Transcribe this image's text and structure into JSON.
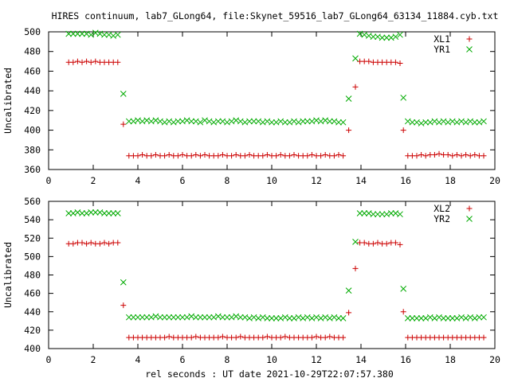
{
  "figure": {
    "title": "HIRES continuum, lab7_GLong64, file:Skynet_59516_lab7_GLong64_63134_11884.cyb.txt",
    "xlabel": "rel seconds : UT date 2021-10-29T22:07:57.380"
  },
  "chart_data": [
    {
      "type": "scatter",
      "ylabel": "Uncalibrated",
      "xlim": [
        0,
        20
      ],
      "ylim": [
        360,
        500
      ],
      "xticks": [
        0,
        2,
        4,
        6,
        8,
        10,
        12,
        14,
        16,
        18,
        20
      ],
      "yticks": [
        360,
        380,
        400,
        420,
        440,
        460,
        480,
        500
      ],
      "legend_position": "top-right",
      "grid": false,
      "series": [
        {
          "name": "XL1",
          "marker": "plus",
          "color": "#cc0000",
          "x": [
            0.9,
            1.1,
            1.3,
            1.5,
            1.7,
            1.9,
            2.1,
            2.3,
            2.5,
            2.7,
            2.9,
            3.1,
            3.35,
            3.6,
            3.8,
            4.0,
            4.2,
            4.4,
            4.6,
            4.8,
            5.0,
            5.2,
            5.4,
            5.6,
            5.8,
            6.0,
            6.2,
            6.4,
            6.6,
            6.8,
            7.0,
            7.2,
            7.4,
            7.6,
            7.8,
            8.0,
            8.2,
            8.4,
            8.6,
            8.8,
            9.0,
            9.2,
            9.4,
            9.6,
            9.8,
            10.0,
            10.2,
            10.4,
            10.6,
            10.8,
            11.0,
            11.2,
            11.4,
            11.6,
            11.8,
            12.0,
            12.2,
            12.4,
            12.6,
            12.8,
            13.0,
            13.2,
            13.45,
            13.75,
            13.95,
            14.15,
            14.35,
            14.55,
            14.75,
            14.95,
            15.15,
            15.35,
            15.55,
            15.75,
            15.9,
            16.1,
            16.3,
            16.5,
            16.7,
            16.9,
            17.1,
            17.3,
            17.5,
            17.7,
            17.9,
            18.1,
            18.3,
            18.5,
            18.7,
            18.9,
            19.1,
            19.3,
            19.5
          ],
          "y": [
            469,
            469,
            470,
            469,
            470,
            469,
            470,
            469,
            469,
            469,
            469,
            469,
            406,
            374,
            374,
            374,
            375,
            374,
            374,
            375,
            374,
            374,
            375,
            374,
            374,
            375,
            374,
            374,
            375,
            374,
            375,
            374,
            374,
            374,
            375,
            374,
            374,
            375,
            374,
            374,
            375,
            374,
            374,
            374,
            375,
            374,
            374,
            375,
            374,
            374,
            375,
            374,
            374,
            374,
            375,
            374,
            374,
            375,
            374,
            374,
            375,
            374,
            400,
            444,
            470,
            470,
            470,
            469,
            469,
            469,
            469,
            469,
            469,
            468,
            400,
            374,
            374,
            374,
            375,
            374,
            375,
            375,
            376,
            375,
            375,
            374,
            375,
            374,
            375,
            374,
            375,
            374,
            374
          ]
        },
        {
          "name": "YR1",
          "marker": "x",
          "color": "#00aa00",
          "x": [
            0.9,
            1.1,
            1.3,
            1.5,
            1.7,
            1.9,
            2.1,
            2.3,
            2.5,
            2.7,
            2.9,
            3.1,
            3.35,
            3.6,
            3.8,
            4.0,
            4.2,
            4.4,
            4.6,
            4.8,
            5.0,
            5.2,
            5.4,
            5.6,
            5.8,
            6.0,
            6.2,
            6.4,
            6.6,
            6.8,
            7.0,
            7.2,
            7.4,
            7.6,
            7.8,
            8.0,
            8.2,
            8.4,
            8.6,
            8.8,
            9.0,
            9.2,
            9.4,
            9.6,
            9.8,
            10.0,
            10.2,
            10.4,
            10.6,
            10.8,
            11.0,
            11.2,
            11.4,
            11.6,
            11.8,
            12.0,
            12.2,
            12.4,
            12.6,
            12.8,
            13.0,
            13.2,
            13.45,
            13.75,
            13.95,
            14.15,
            14.35,
            14.55,
            14.75,
            14.95,
            15.15,
            15.35,
            15.55,
            15.75,
            15.9,
            16.1,
            16.3,
            16.5,
            16.7,
            16.9,
            17.1,
            17.3,
            17.5,
            17.7,
            17.9,
            18.1,
            18.3,
            18.5,
            18.7,
            18.9,
            19.1,
            19.3,
            19.5
          ],
          "y": [
            498,
            498,
            498,
            498,
            498,
            497,
            499,
            498,
            497,
            497,
            496,
            497,
            437,
            409,
            409,
            410,
            409,
            410,
            409,
            410,
            409,
            408,
            409,
            408,
            409,
            409,
            410,
            409,
            409,
            408,
            410,
            409,
            408,
            409,
            409,
            408,
            409,
            410,
            409,
            408,
            409,
            409,
            409,
            408,
            409,
            408,
            408,
            409,
            408,
            408,
            409,
            408,
            409,
            409,
            409,
            410,
            409,
            410,
            409,
            409,
            408,
            408,
            432,
            473,
            498,
            497,
            496,
            495,
            495,
            494,
            494,
            494,
            495,
            497,
            433,
            409,
            408,
            408,
            407,
            408,
            408,
            409,
            408,
            409,
            408,
            409,
            408,
            409,
            408,
            409,
            408,
            408,
            409
          ]
        }
      ]
    },
    {
      "type": "scatter",
      "ylabel": "Uncalibrated",
      "xlim": [
        0,
        20
      ],
      "ylim": [
        400,
        560
      ],
      "xticks": [
        0,
        2,
        4,
        6,
        8,
        10,
        12,
        14,
        16,
        18,
        20
      ],
      "yticks": [
        400,
        420,
        440,
        460,
        480,
        500,
        520,
        540,
        560
      ],
      "legend_position": "top-right",
      "grid": false,
      "series": [
        {
          "name": "XL2",
          "marker": "plus",
          "color": "#cc0000",
          "x": [
            0.9,
            1.1,
            1.3,
            1.5,
            1.7,
            1.9,
            2.1,
            2.3,
            2.5,
            2.7,
            2.9,
            3.1,
            3.35,
            3.6,
            3.8,
            4.0,
            4.2,
            4.4,
            4.6,
            4.8,
            5.0,
            5.2,
            5.4,
            5.6,
            5.8,
            6.0,
            6.2,
            6.4,
            6.6,
            6.8,
            7.0,
            7.2,
            7.4,
            7.6,
            7.8,
            8.0,
            8.2,
            8.4,
            8.6,
            8.8,
            9.0,
            9.2,
            9.4,
            9.6,
            9.8,
            10.0,
            10.2,
            10.4,
            10.6,
            10.8,
            11.0,
            11.2,
            11.4,
            11.6,
            11.8,
            12.0,
            12.2,
            12.4,
            12.6,
            12.8,
            13.0,
            13.2,
            13.45,
            13.75,
            13.95,
            14.15,
            14.35,
            14.55,
            14.75,
            14.95,
            15.15,
            15.35,
            15.55,
            15.75,
            15.9,
            16.1,
            16.3,
            16.5,
            16.7,
            16.9,
            17.1,
            17.3,
            17.5,
            17.7,
            17.9,
            18.1,
            18.3,
            18.5,
            18.7,
            18.9,
            19.1,
            19.3,
            19.5
          ],
          "y": [
            514,
            514,
            515,
            515,
            514,
            515,
            514,
            514,
            515,
            514,
            515,
            515,
            447,
            412,
            412,
            412,
            412,
            412,
            412,
            412,
            412,
            412,
            413,
            412,
            412,
            412,
            412,
            412,
            413,
            412,
            412,
            412,
            412,
            412,
            413,
            412,
            412,
            412,
            413,
            412,
            412,
            412,
            412,
            412,
            413,
            412,
            412,
            412,
            413,
            412,
            412,
            412,
            412,
            412,
            412,
            413,
            412,
            412,
            413,
            412,
            412,
            412,
            439,
            487,
            515,
            515,
            514,
            514,
            515,
            514,
            514,
            515,
            515,
            513,
            440,
            412,
            412,
            412,
            412,
            412,
            412,
            412,
            412,
            412,
            412,
            412,
            412,
            412,
            412,
            412,
            412,
            412,
            412
          ]
        },
        {
          "name": "YR2",
          "marker": "x",
          "color": "#00aa00",
          "x": [
            0.9,
            1.1,
            1.3,
            1.5,
            1.7,
            1.9,
            2.1,
            2.3,
            2.5,
            2.7,
            2.9,
            3.1,
            3.35,
            3.6,
            3.8,
            4.0,
            4.2,
            4.4,
            4.6,
            4.8,
            5.0,
            5.2,
            5.4,
            5.6,
            5.8,
            6.0,
            6.2,
            6.4,
            6.6,
            6.8,
            7.0,
            7.2,
            7.4,
            7.6,
            7.8,
            8.0,
            8.2,
            8.4,
            8.6,
            8.8,
            9.0,
            9.2,
            9.4,
            9.6,
            9.8,
            10.0,
            10.2,
            10.4,
            10.6,
            10.8,
            11.0,
            11.2,
            11.4,
            11.6,
            11.8,
            12.0,
            12.2,
            12.4,
            12.6,
            12.8,
            13.0,
            13.2,
            13.45,
            13.75,
            13.95,
            14.15,
            14.35,
            14.55,
            14.75,
            14.95,
            15.15,
            15.35,
            15.55,
            15.75,
            15.9,
            16.1,
            16.3,
            16.5,
            16.7,
            16.9,
            17.1,
            17.3,
            17.5,
            17.7,
            17.9,
            18.1,
            18.3,
            18.5,
            18.7,
            18.9,
            19.1,
            19.3,
            19.5
          ],
          "y": [
            547,
            547,
            548,
            547,
            547,
            548,
            548,
            548,
            547,
            547,
            547,
            547,
            472,
            434,
            434,
            434,
            434,
            434,
            434,
            435,
            434,
            434,
            434,
            434,
            434,
            434,
            434,
            435,
            434,
            434,
            434,
            434,
            434,
            435,
            434,
            434,
            434,
            435,
            434,
            434,
            433,
            434,
            433,
            434,
            433,
            433,
            433,
            433,
            434,
            433,
            433,
            434,
            433,
            434,
            433,
            434,
            433,
            434,
            433,
            434,
            433,
            433,
            463,
            516,
            547,
            547,
            547,
            546,
            546,
            546,
            546,
            547,
            547,
            546,
            465,
            433,
            433,
            433,
            433,
            433,
            434,
            433,
            434,
            433,
            433,
            433,
            433,
            434,
            433,
            434,
            433,
            434,
            434
          ]
        }
      ]
    }
  ]
}
